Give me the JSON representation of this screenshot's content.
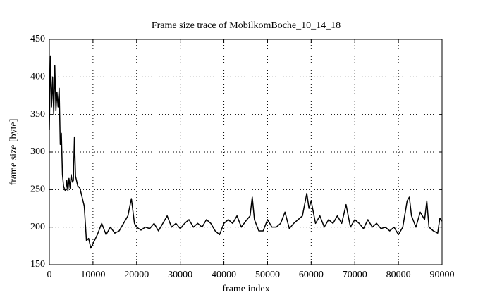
{
  "chart_data": {
    "type": "line",
    "title": "Frame size trace of MobilkomBoche_10_14_18",
    "x_label": "frame index",
    "y_label": "frame size [byte]",
    "x": [
      0,
      250,
      500,
      750,
      1000,
      1250,
      1500,
      1750,
      2000,
      2250,
      2500,
      2750,
      3000,
      3250,
      3500,
      3750,
      4000,
      4250,
      4500,
      4750,
      5000,
      5250,
      5500,
      5750,
      6000,
      6500,
      7000,
      7500,
      8000,
      8500,
      9000,
      9500,
      10000,
      11000,
      12000,
      13000,
      14000,
      15000,
      16000,
      17000,
      18000,
      18800,
      19500,
      20000,
      21000,
      22000,
      23000,
      24000,
      25000,
      26000,
      27000,
      28000,
      29000,
      30000,
      31000,
      32000,
      33000,
      34000,
      35000,
      36000,
      37000,
      38000,
      39000,
      40000,
      41000,
      42000,
      43000,
      44000,
      45000,
      46000,
      46500,
      47000,
      48000,
      49000,
      50000,
      51000,
      52000,
      53000,
      54000,
      55000,
      56000,
      57000,
      58000,
      59000,
      59500,
      60000,
      61000,
      62000,
      63000,
      64000,
      65000,
      66000,
      67000,
      68000,
      69000,
      70000,
      71000,
      72000,
      73000,
      74000,
      75000,
      76000,
      77000,
      78000,
      79000,
      80000,
      81000,
      82000,
      82500,
      83000,
      84000,
      85000,
      86000,
      86500,
      87000,
      88000,
      89000,
      89500,
      90000
    ],
    "values": [
      330,
      428,
      360,
      400,
      350,
      415,
      355,
      380,
      360,
      385,
      310,
      325,
      270,
      255,
      250,
      248,
      262,
      248,
      265,
      252,
      270,
      260,
      262,
      320,
      268,
      255,
      252,
      240,
      228,
      182,
      185,
      172,
      178,
      190,
      205,
      190,
      200,
      192,
      195,
      205,
      215,
      238,
      205,
      200,
      196,
      200,
      198,
      205,
      195,
      205,
      215,
      200,
      205,
      198,
      205,
      210,
      200,
      205,
      200,
      210,
      205,
      195,
      190,
      205,
      210,
      205,
      215,
      200,
      208,
      215,
      240,
      210,
      195,
      195,
      210,
      200,
      200,
      205,
      220,
      198,
      205,
      210,
      215,
      245,
      225,
      235,
      205,
      215,
      200,
      210,
      205,
      215,
      205,
      230,
      200,
      210,
      205,
      198,
      210,
      200,
      205,
      198,
      200,
      195,
      200,
      190,
      200,
      235,
      240,
      215,
      200,
      220,
      210,
      235,
      200,
      195,
      192,
      212,
      208
    ],
    "color": "#000000",
    "xlim": [
      0,
      90000
    ],
    "ylim": [
      150,
      450
    ],
    "xticks": [
      0,
      10000,
      20000,
      30000,
      40000,
      50000,
      60000,
      70000,
      80000,
      90000
    ],
    "yticks": [
      150,
      200,
      250,
      300,
      350,
      400,
      450
    ],
    "grid": true
  }
}
